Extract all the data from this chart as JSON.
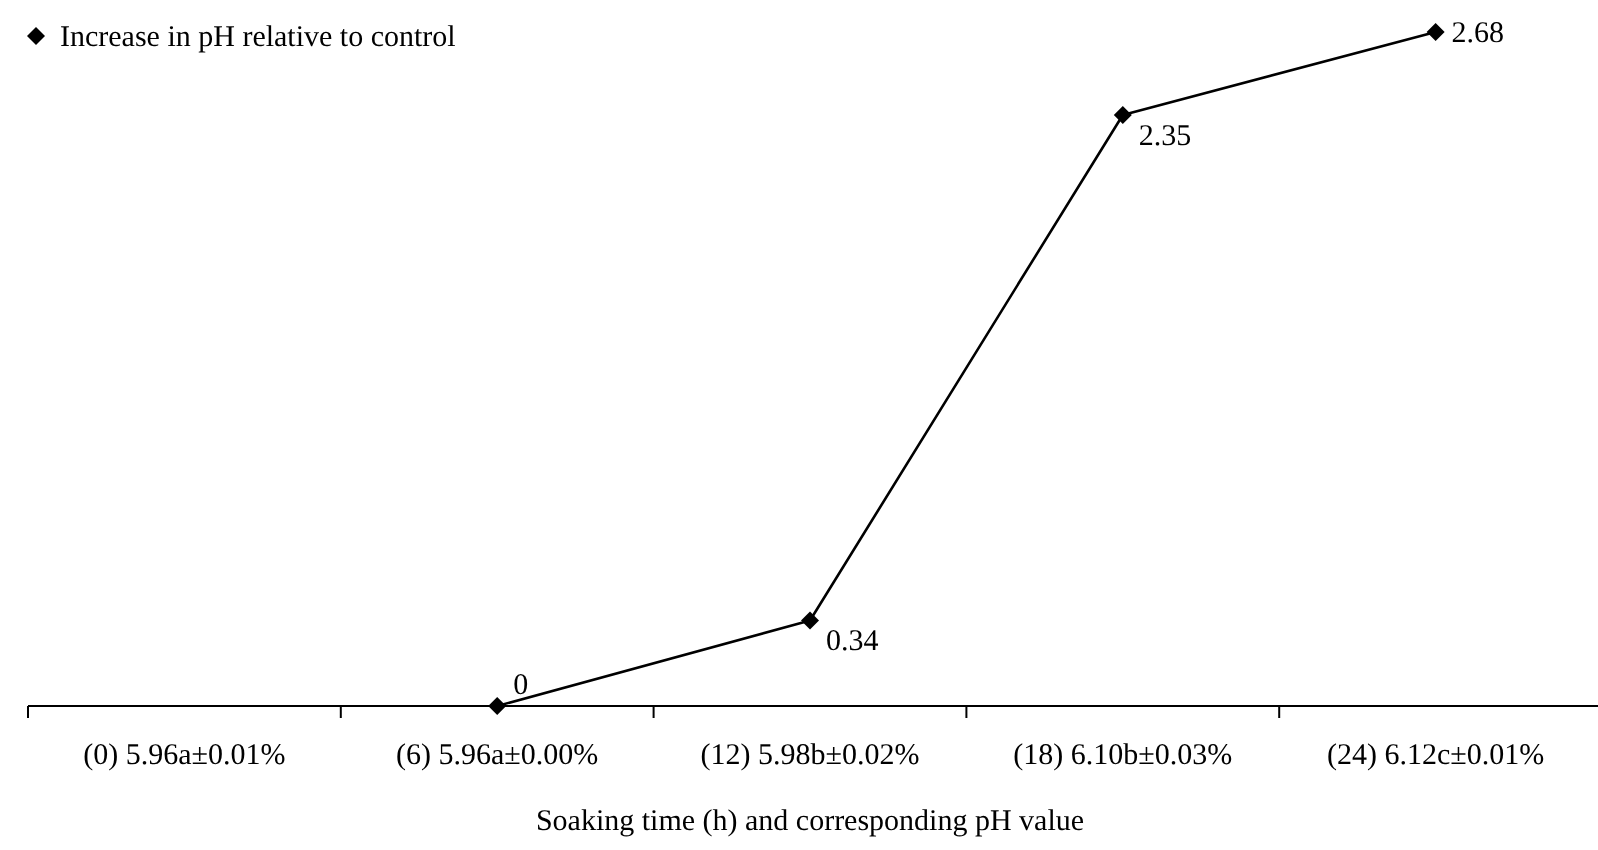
{
  "chart_data": {
    "type": "line",
    "xlabel": "Soaking time (h) and corresponding pH value",
    "categories": [
      "(0) 5.96a±0.01%",
      "(6) 5.96a±0.00%",
      "(12) 5.98b±0.02%",
      "(18) 6.10b±0.03%",
      "(24) 6.12c±0.01%"
    ],
    "series": [
      {
        "name": "Increase in pH relative to control",
        "color": "#000000",
        "values": [
          null,
          0,
          0.34,
          2.35,
          2.68
        ]
      }
    ],
    "data_labels": true,
    "marker": "diamond",
    "line_style": "solid",
    "legend": "top left"
  }
}
